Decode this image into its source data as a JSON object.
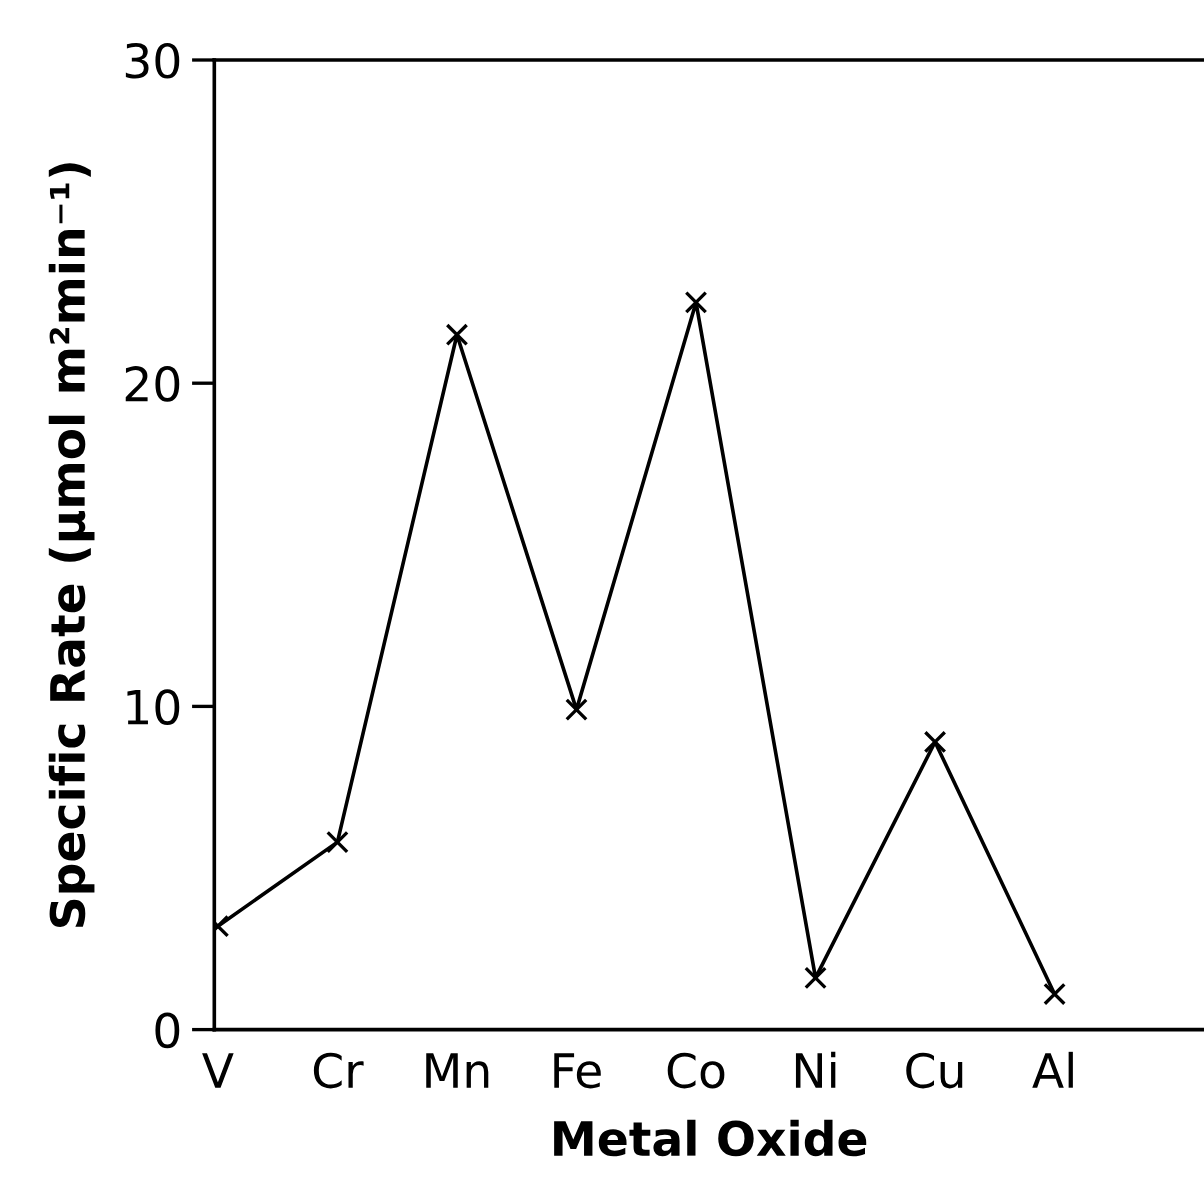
{
  "chart_data": {
    "type": "line",
    "xlabel": "Metal Oxide",
    "ylabel": "Specific Rate (μmol m²min⁻¹)",
    "categories": [
      "V",
      "Cr",
      "Mn",
      "Fe",
      "Co",
      "Ni",
      "Cu",
      "Al"
    ],
    "series": [
      {
        "color": "#000000",
        "values": [
          3.2,
          5.8,
          21.5,
          9.9,
          22.5,
          1.6,
          8.9,
          1.1
        ]
      }
    ],
    "ylim": [
      0,
      30
    ],
    "yticks": [
      0,
      10,
      20,
      30
    ],
    "marker": "cross",
    "line_style": "solid",
    "grid": false,
    "legend": false
  }
}
